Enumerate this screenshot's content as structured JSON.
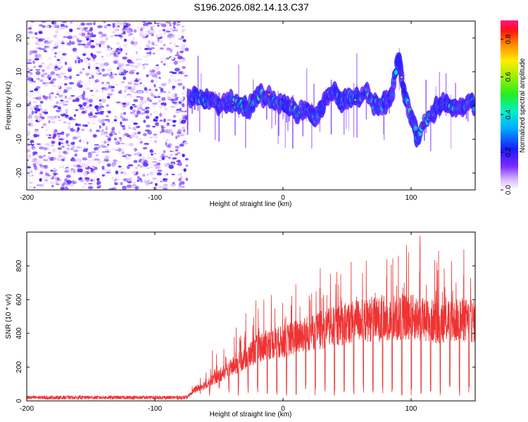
{
  "figure_title": "S196.2026.082.14.13.C37",
  "chart_data": [
    {
      "type": "heatmap",
      "title": "S196.2026.082.14.13.C37",
      "xlabel": "Height of straight line (km)",
      "ylabel": "Frequency (Hz)",
      "xlim": [
        -200,
        150
      ],
      "ylim": [
        -25,
        25
      ],
      "xticks": [
        -200,
        -100,
        0,
        100
      ],
      "yticks": [
        -20,
        -10,
        0,
        10,
        20
      ],
      "x_labels": [
        "-200",
        "-100",
        "0",
        "100"
      ],
      "y_labels": [
        "-20",
        "-10",
        "0",
        "10",
        "20"
      ],
      "noise_region_x": [
        -200,
        -75
      ],
      "ridge_x": [
        -75,
        -70,
        -60,
        -50,
        -40,
        -35,
        -30,
        -25,
        -20,
        -15,
        -10,
        -5,
        0,
        5,
        10,
        15,
        20,
        25,
        30,
        35,
        40,
        45,
        50,
        55,
        60,
        65,
        70,
        75,
        80,
        85,
        90,
        95,
        100,
        105,
        110,
        115,
        120,
        125,
        130,
        135,
        140,
        145,
        150
      ],
      "ridge_freq": [
        2,
        2.5,
        1.5,
        0.5,
        1,
        0,
        -0.5,
        0,
        3,
        3,
        2,
        1,
        -0.5,
        0.5,
        -2,
        -1,
        -1,
        -4,
        -1,
        3,
        5,
        1,
        2,
        3,
        2,
        4,
        1,
        0,
        1,
        3,
        15,
        2,
        -3,
        -10,
        -5,
        -3,
        -1,
        0,
        -0.5,
        0,
        0.5,
        1,
        0
      ],
      "colorbar": {
        "label": "Normalized spectral amplitude",
        "range": [
          0,
          0.9
        ],
        "ticks": [
          0.0,
          0.2,
          0.4,
          0.6,
          0.8
        ],
        "tick_labels": [
          "0.0",
          "0.2",
          "0.4",
          "0.6",
          "0.8"
        ]
      }
    },
    {
      "type": "line",
      "xlabel": "Height of straight line (km)",
      "ylabel": "SNR (10 * v/v)",
      "xlim": [
        -200,
        150
      ],
      "ylim": [
        0,
        1000
      ],
      "xticks": [
        -200,
        -100,
        0,
        100
      ],
      "yticks": [
        0,
        200,
        400,
        600,
        800
      ],
      "x_labels": [
        "-200",
        "-100",
        "0",
        "100"
      ],
      "y_labels": [
        "0",
        "200",
        "400",
        "600",
        "800"
      ],
      "series": [
        {
          "name": "SNR",
          "color": "#ee3333",
          "envelope_x": [
            -200,
            -75,
            -70,
            -60,
            -50,
            -40,
            -30,
            -20,
            -10,
            0,
            10,
            20,
            30,
            40,
            50,
            60,
            70,
            80,
            90,
            100,
            110,
            120,
            130,
            140,
            150
          ],
          "envelope_mean": [
            20,
            20,
            60,
            100,
            150,
            200,
            250,
            310,
            340,
            350,
            380,
            400,
            420,
            440,
            460,
            480,
            480,
            480,
            480,
            500,
            480,
            470,
            470,
            480,
            470
          ],
          "peaks": [
            {
              "x": -55,
              "y": 300
            },
            {
              "x": -15,
              "y": 600
            },
            {
              "x": 10,
              "y": 690
            },
            {
              "x": 45,
              "y": 750
            },
            {
              "x": 65,
              "y": 830
            },
            {
              "x": 90,
              "y": 860
            },
            {
              "x": 98,
              "y": 880
            },
            {
              "x": 107,
              "y": 980
            },
            {
              "x": 120,
              "y": 820
            },
            {
              "x": 135,
              "y": 700
            }
          ]
        }
      ]
    }
  ]
}
